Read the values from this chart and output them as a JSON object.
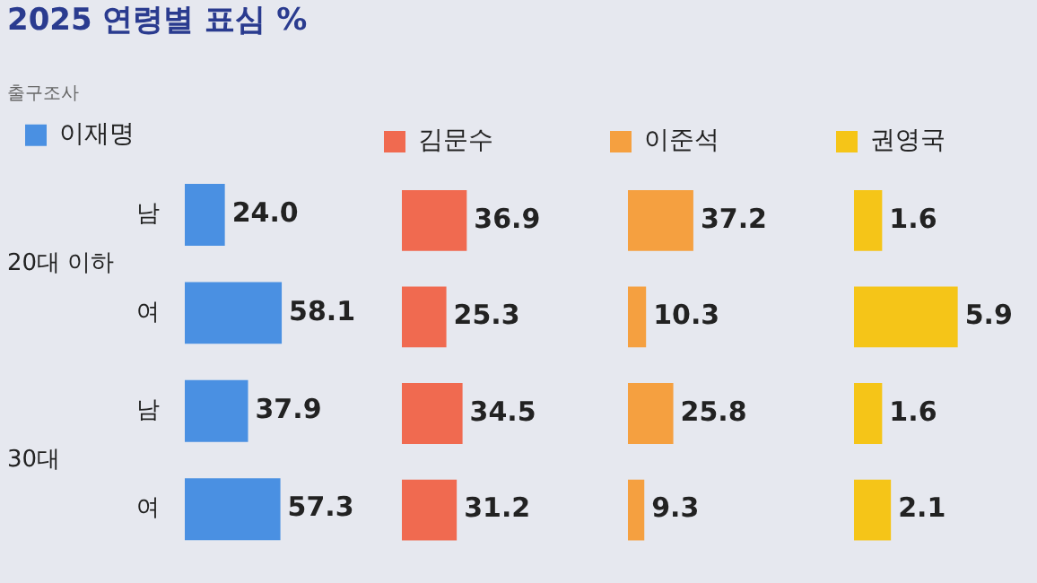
{
  "chart_data": [
    {
      "type": "bar",
      "title": "2025 연령별 표심 %",
      "subtitle": "출구조사",
      "orientation": "horizontal",
      "categories": [
        "남",
        "여",
        "남",
        "여"
      ],
      "annotations": [
        "20대 이하",
        "30대"
      ],
      "legend": "top",
      "data_labels": true,
      "series": [
        {
          "name": "이재명",
          "color": "#4a90e2",
          "values": [
            24.0,
            58.1,
            37.9,
            57.3
          ],
          "value_labels": [
            "24.0",
            "58.1",
            "37.9",
            "57.3"
          ]
        }
      ]
    },
    {
      "type": "bar",
      "orientation": "horizontal",
      "categories": [
        null,
        null,
        null,
        null
      ],
      "legend": "top",
      "data_labels": true,
      "series": [
        {
          "name": "김문수",
          "color": "#f06a50",
          "values": [
            36.9,
            25.3,
            34.5,
            31.2
          ],
          "value_labels": [
            "36.9",
            "25.3",
            "34.5",
            "31.2"
          ]
        }
      ]
    },
    {
      "type": "bar",
      "orientation": "horizontal",
      "categories": [
        null,
        null,
        null,
        null
      ],
      "legend": "top",
      "data_labels": true,
      "series": [
        {
          "name": "이준석",
          "color": "#f5a040",
          "values": [
            37.2,
            10.3,
            25.8,
            9.3
          ],
          "value_labels": [
            "37.2",
            "10.3",
            "25.8",
            "9.3"
          ]
        }
      ]
    },
    {
      "type": "bar",
      "orientation": "horizontal",
      "categories": [
        null,
        null,
        null,
        null
      ],
      "legend": "top",
      "data_labels": true,
      "series": [
        {
          "name": "권영국",
          "color": "#f5c518",
          "values": [
            1.6,
            5.9,
            1.6,
            2.1
          ],
          "value_labels": [
            "1.6",
            "5.9",
            "1.6",
            "2.1"
          ]
        }
      ]
    }
  ]
}
